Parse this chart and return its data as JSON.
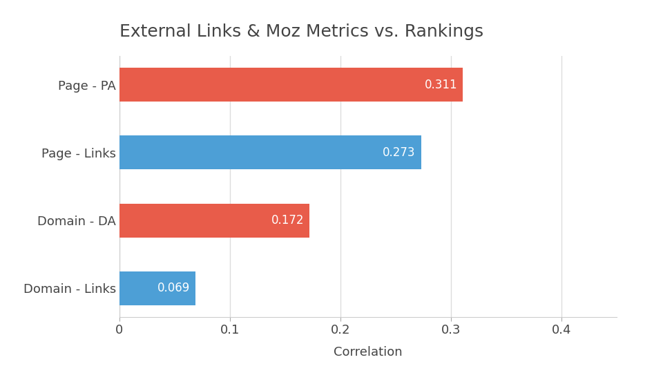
{
  "title": "External Links & Moz Metrics vs. Rankings",
  "categories": [
    "Domain - Links",
    "Domain - DA",
    "Page - Links",
    "Page - PA"
  ],
  "values": [
    0.069,
    0.172,
    0.273,
    0.311
  ],
  "colors": [
    "#4d9fd6",
    "#e85c4a",
    "#4d9fd6",
    "#e85c4a"
  ],
  "xlabel": "Correlation",
  "xlim": [
    0,
    0.45
  ],
  "xticks": [
    0,
    0.1,
    0.2,
    0.3,
    0.4
  ],
  "bar_height": 0.5,
  "label_fontsize": 13,
  "title_fontsize": 18,
  "xlabel_fontsize": 13,
  "value_fontsize": 12,
  "background_color": "#ffffff",
  "grid_color": "#dddddd",
  "text_color": "#444444"
}
